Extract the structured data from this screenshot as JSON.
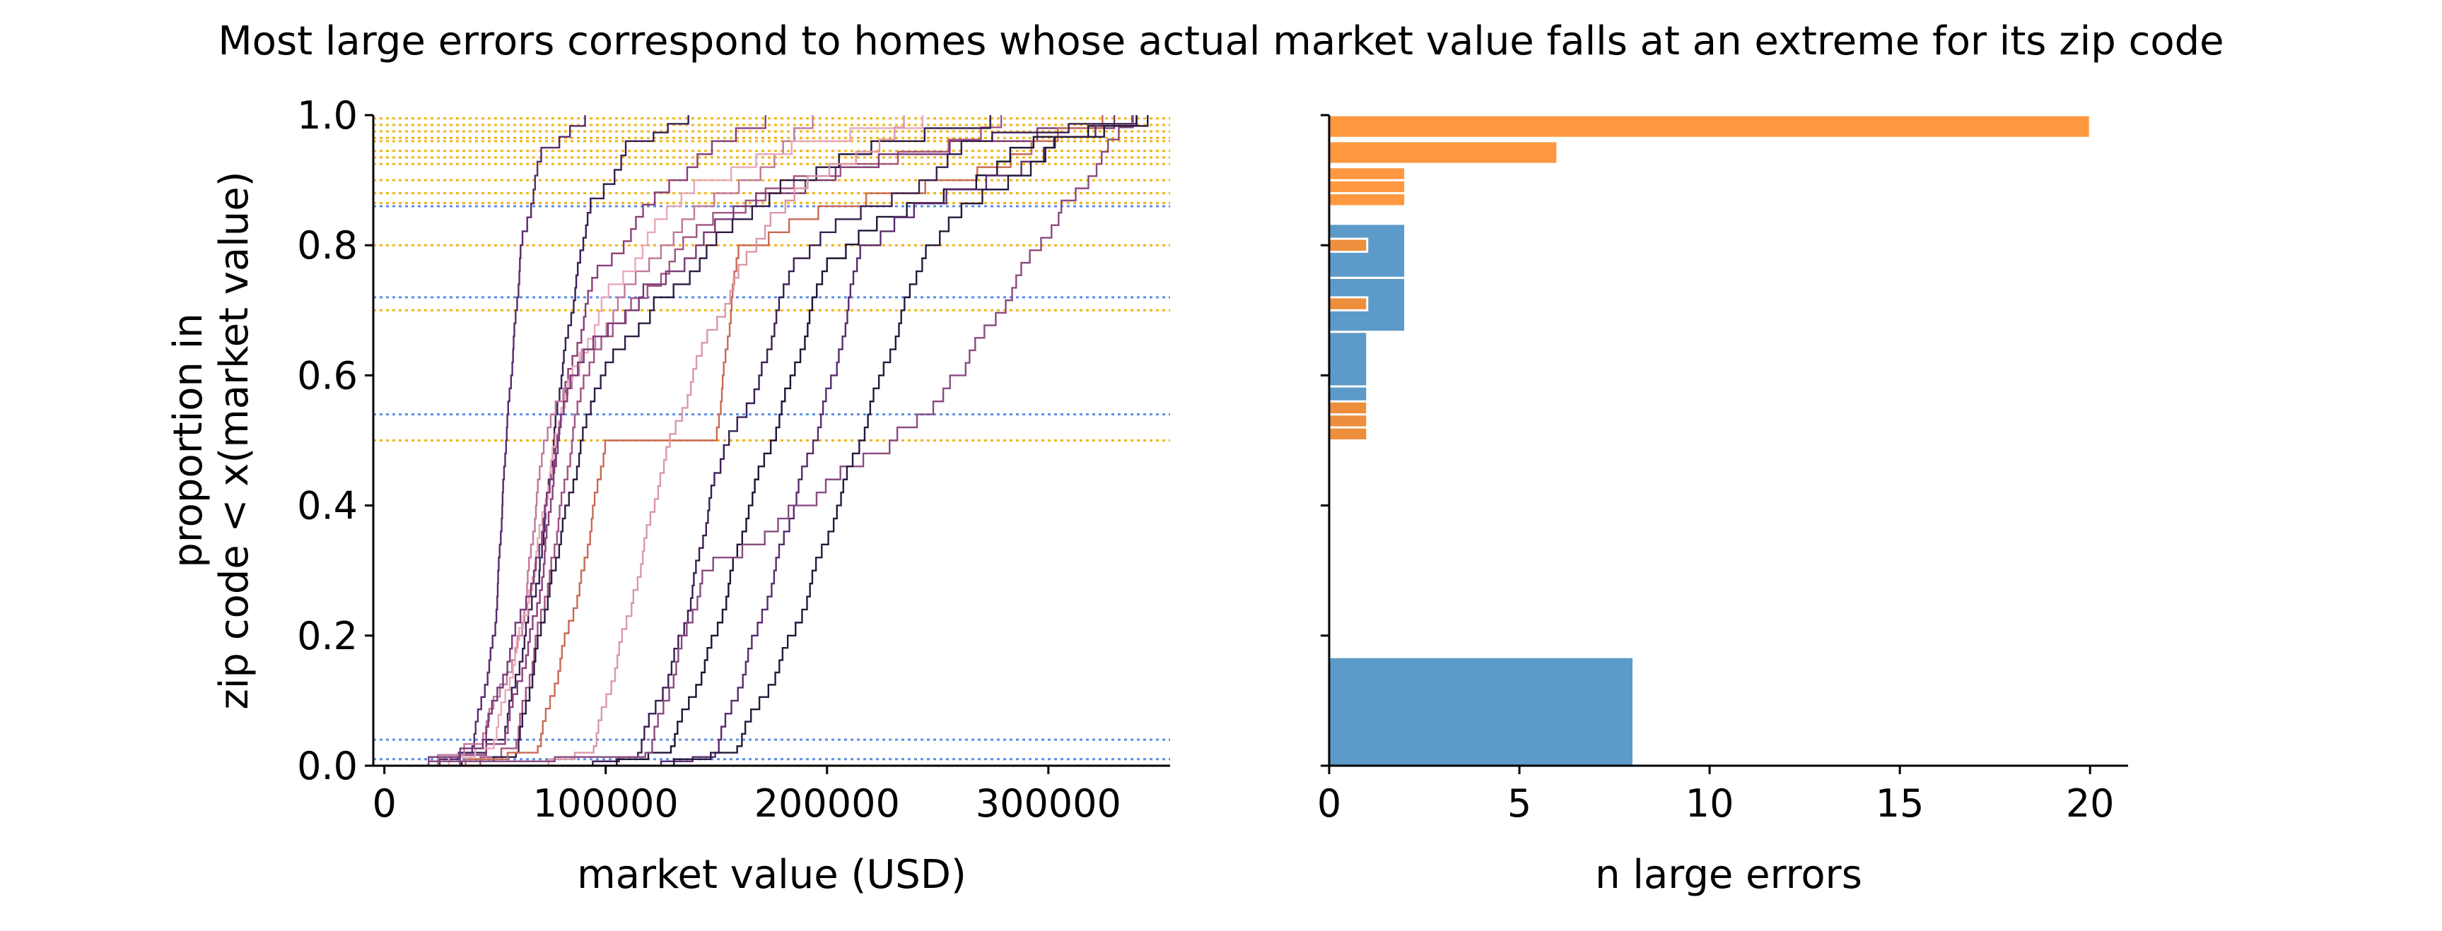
{
  "figure": {
    "title": "Most large errors correspond to homes whose actual market value falls at an extreme for its zip code"
  },
  "chart_data": [
    {
      "type": "line",
      "subtype": "step-ecdf",
      "xlabel": "market value (USD)",
      "ylabel_line1": "proportion in",
      "ylabel_line2": "zip code < x(market value)",
      "xlim": [
        -5000,
        355000
      ],
      "ylim": [
        0,
        1.0
      ],
      "xticks": [
        0,
        100000,
        200000,
        300000
      ],
      "yticks": [
        0.0,
        0.2,
        0.4,
        0.6,
        0.8,
        1.0
      ],
      "xtick_labels": [
        "0",
        "100000",
        "200000",
        "300000"
      ],
      "ytick_labels": [
        "0.0",
        "0.2",
        "0.4",
        "0.6",
        "0.8",
        "1.0"
      ],
      "series_note": "one empirical CDF curve per zip code containing a large error",
      "series": [
        {
          "color": "#5a2a6e",
          "points": [
            [
              22000,
              0
            ],
            [
              40000,
              0.03
            ],
            [
              50000,
              0.2
            ],
            [
              55000,
              0.5
            ],
            [
              62000,
              0.8
            ],
            [
              72000,
              0.95
            ],
            [
              100000,
              1.0
            ]
          ]
        },
        {
          "color": "#3a1f55",
          "points": [
            [
              30000,
              0
            ],
            [
              55000,
              0.06
            ],
            [
              70000,
              0.3
            ],
            [
              80000,
              0.6
            ],
            [
              92000,
              0.85
            ],
            [
              112000,
              0.96
            ],
            [
              150000,
              1.0
            ]
          ]
        },
        {
          "color": "#8a3f7a",
          "points": [
            [
              30000,
              0
            ],
            [
              55000,
              0.05
            ],
            [
              70000,
              0.25
            ],
            [
              80000,
              0.55
            ],
            [
              95000,
              0.75
            ],
            [
              130000,
              0.9
            ],
            [
              175000,
              1.0
            ]
          ]
        },
        {
          "color": "#c0799b",
          "points": [
            [
              20000,
              0
            ],
            [
              45000,
              0.05
            ],
            [
              62000,
              0.2
            ],
            [
              72000,
              0.5
            ],
            [
              88000,
              0.62
            ],
            [
              125000,
              0.8
            ],
            [
              200000,
              1.0
            ]
          ]
        },
        {
          "color": "#e8a9b8",
          "points": [
            [
              25000,
              0
            ],
            [
              50000,
              0.04
            ],
            [
              65000,
              0.25
            ],
            [
              80000,
              0.55
            ],
            [
              100000,
              0.72
            ],
            [
              140000,
              0.9
            ],
            [
              250000,
              1.0
            ]
          ]
        },
        {
          "color": "#a25483",
          "points": [
            [
              40000,
              0
            ],
            [
              60000,
              0.04
            ],
            [
              75000,
              0.3
            ],
            [
              90000,
              0.6
            ],
            [
              110000,
              0.7
            ],
            [
              150000,
              0.85
            ],
            [
              290000,
              1.0
            ]
          ]
        },
        {
          "color": "#7a3a78",
          "points": [
            [
              15000,
              0
            ],
            [
              45000,
              0.04
            ],
            [
              68000,
              0.3
            ],
            [
              84000,
              0.6
            ],
            [
              115000,
              0.72
            ],
            [
              170000,
              0.88
            ],
            [
              330000,
              1.0
            ]
          ]
        },
        {
          "color": "#2f1b45",
          "points": [
            [
              30000,
              0
            ],
            [
              60000,
              0.02
            ],
            [
              75000,
              0.28
            ],
            [
              95000,
              0.58
            ],
            [
              120000,
              0.7
            ],
            [
              180000,
              0.9
            ],
            [
              280000,
              1.0
            ]
          ]
        },
        {
          "color": "#c96a55",
          "points": [
            [
              30000,
              0
            ],
            [
              70000,
              0.03
            ],
            [
              90000,
              0.3
            ],
            [
              100000,
              0.5
            ],
            [
              150000,
              0.5
            ],
            [
              160000,
              0.8
            ],
            [
              340000,
              1.0
            ]
          ]
        },
        {
          "color": "#d99aa7",
          "points": [
            [
              70000,
              0
            ],
            [
              95000,
              0.03
            ],
            [
              112000,
              0.25
            ],
            [
              125000,
              0.45
            ],
            [
              145000,
              0.65
            ],
            [
              175000,
              0.85
            ],
            [
              240000,
              1.0
            ]
          ]
        },
        {
          "color": "#3a1f55",
          "points": [
            [
              90000,
              0
            ],
            [
              115000,
              0.02
            ],
            [
              135000,
              0.2
            ],
            [
              150000,
              0.45
            ],
            [
              170000,
              0.6
            ],
            [
              185000,
              0.78
            ],
            [
              270000,
              0.96
            ],
            [
              340000,
              1.0
            ]
          ]
        },
        {
          "color": "#1f1535",
          "points": [
            [
              100000,
              0
            ],
            [
              130000,
              0.03
            ],
            [
              150000,
              0.2
            ],
            [
              165000,
              0.4
            ],
            [
              185000,
              0.6
            ],
            [
              200000,
              0.78
            ],
            [
              290000,
              0.95
            ],
            [
              340000,
              1.0
            ]
          ]
        },
        {
          "color": "#5a2a6e",
          "points": [
            [
              120000,
              0
            ],
            [
              150000,
              0.02
            ],
            [
              170000,
              0.22
            ],
            [
              185000,
              0.4
            ],
            [
              205000,
              0.62
            ],
            [
              215000,
              0.8
            ],
            [
              300000,
              0.95
            ],
            [
              338000,
              1.0
            ]
          ]
        },
        {
          "color": "#8a4a80",
          "points": [
            [
              0,
              0
            ],
            [
              120000,
              0.02
            ],
            [
              145000,
              0.3
            ],
            [
              190000,
              0.4
            ],
            [
              230000,
              0.5
            ],
            [
              260000,
              0.6
            ],
            [
              305000,
              0.85
            ],
            [
              340000,
              1.0
            ]
          ]
        },
        {
          "color": "#241a3d",
          "points": [
            [
              125000,
              0
            ],
            [
              160000,
              0.03
            ],
            [
              185000,
              0.2
            ],
            [
              205000,
              0.4
            ],
            [
              225000,
              0.6
            ],
            [
              245000,
              0.8
            ],
            [
              300000,
              0.95
            ],
            [
              345000,
              1.0
            ]
          ]
        }
      ],
      "reference_lines_orange": [
        0.5,
        0.7,
        0.8,
        0.865,
        0.88,
        0.9,
        0.925,
        0.935,
        0.945,
        0.96,
        0.965,
        0.975,
        0.985,
        0.995
      ],
      "reference_lines_blue": [
        0.01,
        0.04,
        0.54,
        0.72,
        0.86
      ],
      "colors": {
        "orange_line": "#f2b418",
        "blue_line": "#5b8fe8"
      }
    },
    {
      "type": "bar",
      "orientation": "horizontal",
      "xlabel": "n large errors",
      "xlim": [
        0,
        21
      ],
      "ylim": [
        0,
        1.0
      ],
      "xticks": [
        0,
        5,
        10,
        15,
        20
      ],
      "xtick_labels": [
        "0",
        "5",
        "10",
        "15",
        "20"
      ],
      "yticks": [
        0.0,
        0.2,
        0.4,
        0.6,
        0.8,
        1.0
      ],
      "series": [
        {
          "color": "#4a8fc3",
          "bins": [
            {
              "y0": 0.0,
              "y1": 0.167,
              "value": 8
            },
            {
              "y0": 0.5,
              "y1": 0.583,
              "value": 1
            },
            {
              "y0": 0.583,
              "y1": 0.667,
              "value": 1
            },
            {
              "y0": 0.667,
              "y1": 0.75,
              "value": 2
            },
            {
              "y0": 0.75,
              "y1": 0.833,
              "value": 2
            }
          ]
        },
        {
          "color": "#fd8d2c",
          "bins": [
            {
              "y0": 0.5,
              "y1": 0.52,
              "value": 1
            },
            {
              "y0": 0.52,
              "y1": 0.54,
              "value": 1
            },
            {
              "y0": 0.54,
              "y1": 0.56,
              "value": 1
            },
            {
              "y0": 0.7,
              "y1": 0.72,
              "value": 1
            },
            {
              "y0": 0.79,
              "y1": 0.81,
              "value": 1
            },
            {
              "y0": 0.86,
              "y1": 0.88,
              "value": 2
            },
            {
              "y0": 0.88,
              "y1": 0.9,
              "value": 2
            },
            {
              "y0": 0.9,
              "y1": 0.92,
              "value": 2
            },
            {
              "y0": 0.925,
              "y1": 0.96,
              "value": 6
            },
            {
              "y0": 0.965,
              "y1": 1.0,
              "value": 20
            }
          ]
        }
      ]
    }
  ]
}
